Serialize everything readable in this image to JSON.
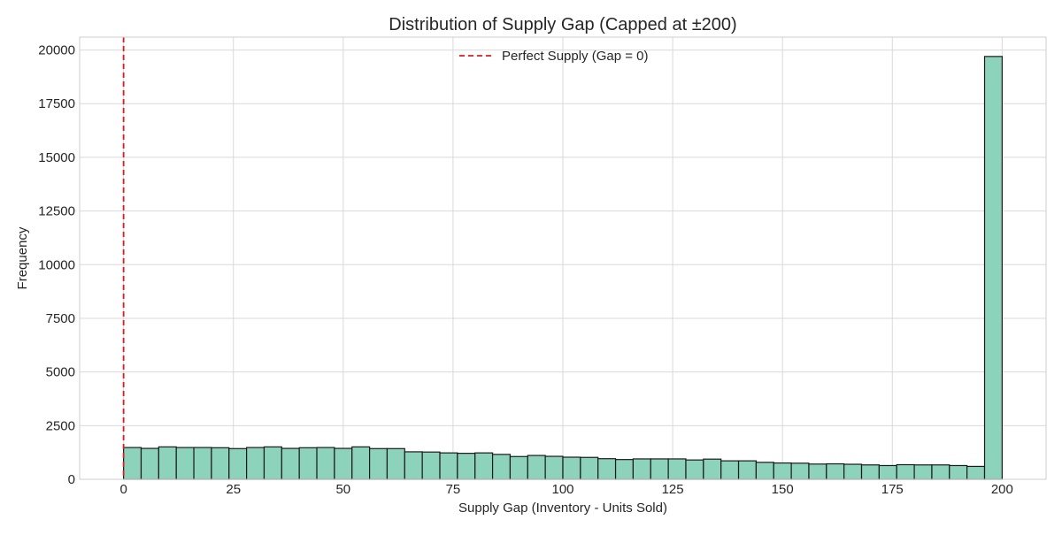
{
  "chart_data": {
    "type": "bar",
    "title": "Distribution of Supply Gap (Capped at ±200)",
    "xlabel": "Supply Gap (Inventory - Units Sold)",
    "ylabel": "Frequency",
    "xlim": [
      -10,
      210
    ],
    "ylim": [
      0,
      20600
    ],
    "xticks": [
      0,
      25,
      50,
      75,
      100,
      125,
      150,
      175,
      200
    ],
    "yticks": [
      0,
      2500,
      5000,
      7500,
      10000,
      12500,
      15000,
      17500,
      20000
    ],
    "grid": true,
    "legend_position": "upper center",
    "bar_color": "#8dd3bb",
    "bar_edge_color": "#1a1a1a",
    "bins": {
      "start": 0,
      "width": 4,
      "counts": [
        1480,
        1440,
        1510,
        1480,
        1480,
        1470,
        1430,
        1480,
        1510,
        1440,
        1470,
        1480,
        1440,
        1510,
        1430,
        1430,
        1280,
        1270,
        1230,
        1210,
        1230,
        1160,
        1060,
        1110,
        1070,
        1030,
        1020,
        960,
        920,
        950,
        950,
        950,
        900,
        940,
        860,
        860,
        790,
        760,
        750,
        710,
        720,
        700,
        670,
        640,
        680,
        670,
        670,
        640,
        600,
        19700
      ]
    },
    "reference_line": {
      "x": 0,
      "label": "Perfect Supply (Gap = 0)",
      "color": "#e31a1c",
      "style": "dashed"
    }
  }
}
